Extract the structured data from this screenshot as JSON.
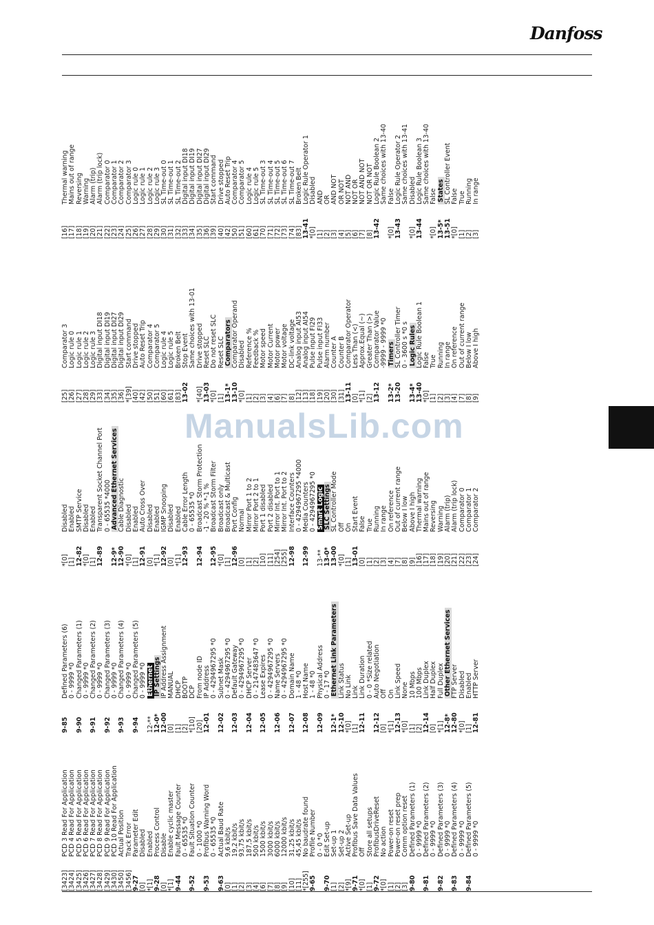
{
  "logo": {
    "text": "Danfoss"
  },
  "watermark": "ManualsLib.com",
  "columns": [
    [
      [
        "[3423]",
        "PCD 3 Read For Application"
      ],
      [
        "[3424]",
        "PCD 4 Read For Application"
      ],
      [
        "[3425]",
        "PCD 5 Read For Application"
      ],
      [
        "[3426]",
        "PCD 6 Read For Application"
      ],
      [
        "[3427]",
        "PCD 7 Read For Application"
      ],
      [
        "[3428]",
        "PCD 8 Read For Application"
      ],
      [
        "[3429]",
        "PCD 9 Read For Application"
      ],
      [
        "[3430]",
        "PCD 10 Read For Application"
      ],
      [
        "[3450]",
        "Actual Position"
      ],
      [
        "[3456]",
        "Track Error"
      ],
      [
        "9-27",
        "Parameter Edit"
      ],
      [
        "[0]",
        "Disabled"
      ],
      [
        "*[1]",
        "Enabled"
      ],
      [
        "9-28",
        "Process Control"
      ],
      [
        "[0]",
        "Disable"
      ],
      [
        "*[1]",
        "Enable cyclic master"
      ],
      [
        "9-44",
        "Fault Message Counter"
      ],
      [
        "",
        "0 - 65535 *0"
      ],
      [
        "9-52",
        "Fault Situation Counter"
      ],
      [
        "",
        "0 - 1000 *0"
      ],
      [
        "9-53",
        "Profibus Warning Word"
      ],
      [
        "",
        "0 - 65535 *0"
      ],
      [
        "9-63",
        "Actual Baud Rate"
      ],
      [
        "[0]",
        "9,6 kbit/s"
      ],
      [
        "[1]",
        "19,2 kbit/s"
      ],
      [
        "[2]",
        "93,75 kbit/s"
      ],
      [
        "[3]",
        "187,5 kbit/s"
      ],
      [
        "[4]",
        "500 kbit/s"
      ],
      [
        "[6]",
        "1500 kbit/s"
      ],
      [
        "[7]",
        "3000 kbit/s"
      ],
      [
        "[8]",
        "6000 kbit/s"
      ],
      [
        "[9]",
        "12000 kbit/s"
      ],
      [
        "[10]",
        "31,25 kbit/s"
      ],
      [
        "[11]",
        "45,45 kbit/s"
      ],
      [
        "*[255]",
        "No baudrate found"
      ],
      [
        "9-65",
        "Profile Number"
      ],
      [
        "",
        "0 - 0 *0"
      ],
      [
        "9-70",
        "Edit Set-up"
      ],
      [
        "[1]",
        "Set-up 1"
      ],
      [
        "[2]",
        "Set-up 2"
      ],
      [
        "*[9]",
        "Active Set-up"
      ],
      [
        "9-71",
        "Profibus Save Data Values"
      ],
      [
        "*[0]",
        "Off"
      ],
      [
        "[1]",
        "Store all setups"
      ],
      [
        "9-72",
        "ProfibusDriveReset"
      ],
      [
        "*[0]",
        "No action"
      ],
      [
        "[1]",
        "Power-on reset"
      ],
      [
        "[2]",
        "Power-on reset prep"
      ],
      [
        "[3]",
        "Comm option reset"
      ],
      [
        "9-80",
        "Defined Parameters (1)"
      ],
      [
        "",
        "0 - 9999 *0"
      ],
      [
        "9-81",
        "Defined Parameters (2)"
      ],
      [
        "",
        "0 - 9999 *0"
      ],
      [
        "9-82",
        "Defined Parameters (3)"
      ],
      [
        "",
        "0 - 9999 *0"
      ],
      [
        "9-83",
        "Defined Parameters (4)"
      ],
      [
        "",
        "0 - 9999 *0"
      ],
      [
        "9-84",
        "Defined Parameters (5)"
      ],
      [
        "",
        "0 - 9999 *0"
      ]
    ],
    [
      [
        "9-85",
        "Defined Parameters (6)"
      ],
      [
        "",
        "0 - 9999 *0"
      ],
      [
        "9-90",
        "Changed Parameters (1)"
      ],
      [
        "",
        "0 - 9999 *0"
      ],
      [
        "9-91",
        "Changed Parameters (2)"
      ],
      [
        "",
        "0 - 9999 *0"
      ],
      [
        "9-92",
        "Changed Parameters (3)"
      ],
      [
        "",
        "0 - 9999 *0"
      ],
      [
        "9-93",
        "Changed Parameters (4)"
      ],
      [
        "",
        "0 - 9999 *0"
      ],
      [
        "9-94",
        "Changed Parameters (5)"
      ],
      [
        "",
        "0 - 9999 *0"
      ],
      [
        "12-**",
        "Ethernet",
        "dark"
      ],
      [
        "12-0*",
        "IP Settings",
        "grey"
      ],
      [
        "12-00",
        "IP Address Assignment"
      ],
      [
        "[0]",
        "MANUAL"
      ],
      [
        "[1]",
        "DHCP"
      ],
      [
        "[2]",
        "BOOTP"
      ],
      [
        "*[10]",
        "DCP"
      ],
      [
        "[20]",
        "From node ID"
      ],
      [
        "12-01",
        "IP Address"
      ],
      [
        "",
        "0 - 4294967295 *0"
      ],
      [
        "12-02",
        "Subnet Mask"
      ],
      [
        "",
        "0 - 4294967295 *0"
      ],
      [
        "12-03",
        "Default Gateway"
      ],
      [
        "",
        "0 - 4294967295 *0"
      ],
      [
        "12-04",
        "DHCP Server"
      ],
      [
        "",
        "0 - 2147483647 *0"
      ],
      [
        "12-05",
        "Lease Expires"
      ],
      [
        "",
        "0 - 4294967295 *0"
      ],
      [
        "12-06",
        "Name Servers"
      ],
      [
        "",
        "0 - 4294967295 *0"
      ],
      [
        "12-07",
        "Domain Name"
      ],
      [
        "",
        "1 - 48 *0"
      ],
      [
        "12-08",
        "Host Name"
      ],
      [
        "",
        "1 - 48 *0"
      ],
      [
        "12-09",
        "Physical Address"
      ],
      [
        "",
        "0 - 17 *0"
      ],
      [
        "12-1*",
        "Ethernet Link Parameters",
        "grey"
      ],
      [
        "12-10",
        "Link Status"
      ],
      [
        "*[0]",
        "No Link"
      ],
      [
        "[1]",
        "Link"
      ],
      [
        "12-11",
        "Link Duration"
      ],
      [
        "",
        "0 - 0 *Size related"
      ],
      [
        "12-12",
        "Auto Negotiation"
      ],
      [
        "[0]",
        "Off"
      ],
      [
        "*[1]",
        "On"
      ],
      [
        "12-13",
        "Link Speed"
      ],
      [
        "*[0]",
        "None"
      ],
      [
        "[1]",
        "10 Mbps"
      ],
      [
        "[2]",
        "100 Mbps"
      ],
      [
        "12-14",
        "Link Duplex"
      ],
      [
        "[0]",
        "Half Duplex"
      ],
      [
        "*[1]",
        "Full Duplex"
      ],
      [
        "12-8*",
        "Other Ethernet Services",
        "grey"
      ],
      [
        "12-80",
        "FTP Server"
      ],
      [
        "*[0]",
        "Disabled"
      ],
      [
        "[1]",
        "Enabled"
      ],
      [
        "12-81",
        "HTTP Server"
      ]
    ],
    [
      [
        "*[0]",
        "Disabled"
      ],
      [
        "[1]",
        "Enabled"
      ],
      [
        "12-82",
        "SMTP Service"
      ],
      [
        "*[0]",
        "Disabled"
      ],
      [
        "[1]",
        "Enabled"
      ],
      [
        "12-89",
        "Transparent Socket Channel Port"
      ],
      [
        "",
        "0 - 65535 *4000"
      ],
      [
        "12-9*",
        "Advanced Ethernet Services",
        "grey"
      ],
      [
        "12-90",
        "Cable Diagnostic"
      ],
      [
        "*[0]",
        "Disabled"
      ],
      [
        "[1]",
        "Enabled"
      ],
      [
        "12-91",
        "Auto Cross Over"
      ],
      [
        "[0]",
        "Disabled"
      ],
      [
        "*[1]",
        "Enabled"
      ],
      [
        "12-92",
        "IGMP Snooping"
      ],
      [
        "[0]",
        "Disabled"
      ],
      [
        "*[1]",
        "Enabled"
      ],
      [
        "12-93",
        "Cable Error Length"
      ],
      [
        "",
        "0 - 65535 *0"
      ],
      [
        "12-94",
        "Broadcast Storm Protection"
      ],
      [
        "",
        "-1 - 20 % *-1 %"
      ],
      [
        "12-95",
        "Broadcast Storm Filter"
      ],
      [
        "*[0]",
        "Broadcast only"
      ],
      [
        "[1]",
        "Broadcast & Multicast"
      ],
      [
        "12-96",
        "Port Config"
      ],
      [
        "[0]",
        "Normal"
      ],
      [
        "[1]",
        "Mirror Port 1 to 2"
      ],
      [
        "[2]",
        "Mirror Port 2 to 1"
      ],
      [
        "[10]",
        "Port 1 disabled"
      ],
      [
        "[11]",
        "Port 2 disabled"
      ],
      [
        "[254]",
        "Mirror Int. Port to 1"
      ],
      [
        "[255]",
        "Mirror Int. Port to 2"
      ],
      [
        "12-98",
        "Interface Counters"
      ],
      [
        "",
        "0 - 4294967295 *4000"
      ],
      [
        "12-99",
        "Media Counters"
      ],
      [
        "",
        "0 - 4294967295 *0"
      ],
      [
        "13-**",
        "Smart Logic",
        "dark"
      ],
      [
        "13-0*",
        "SLC Settings",
        "grey"
      ],
      [
        "13-00",
        "SL Controller Mode"
      ],
      [
        "*[0]",
        "Off"
      ],
      [
        "[1]",
        "On"
      ],
      [
        "13-01",
        "Start Event"
      ],
      [
        "[0]",
        "False"
      ],
      [
        "[1]",
        "True"
      ],
      [
        "[2]",
        "Running"
      ],
      [
        "[3]",
        "In range"
      ],
      [
        "[4]",
        "On reference"
      ],
      [
        "[7]",
        "Out of current range"
      ],
      [
        "[8]",
        "Below I low"
      ],
      [
        "[9]",
        "Above I high"
      ],
      [
        "[16]",
        "Thermal warning"
      ],
      [
        "[17]",
        "Mains out of range"
      ],
      [
        "[18]",
        "Reversing"
      ],
      [
        "[19]",
        "Warning"
      ],
      [
        "[20]",
        "Alarm (trip)"
      ],
      [
        "[21]",
        "Alarm (trip lock)"
      ],
      [
        "[22]",
        "Comparator 0"
      ],
      [
        "[23]",
        "Comparator 1"
      ],
      [
        "[24]",
        "Comparator 2"
      ]
    ],
    [
      [
        "[25]",
        "Comparator 3"
      ],
      [
        "[26]",
        "Logic rule 0"
      ],
      [
        "[27]",
        "Logic rule 1"
      ],
      [
        "[28]",
        "Logic rule 2"
      ],
      [
        "[29]",
        "Logic rule 3"
      ],
      [
        "[33]",
        "Digital input DI18"
      ],
      [
        "[34]",
        "Digital input DI19"
      ],
      [
        "[35]",
        "Digital input DI27"
      ],
      [
        "[36]",
        "Digital input DI29"
      ],
      [
        "*[39]",
        "Start command"
      ],
      [
        "[40]",
        "Drive stopped"
      ],
      [
        "[42]",
        "Auto Reset Trip"
      ],
      [
        "[50]",
        "Comparator 4"
      ],
      [
        "[51]",
        "Comparator 5"
      ],
      [
        "[60]",
        "Logic rule 4"
      ],
      [
        "[61]",
        "Logic rule 5"
      ],
      [
        "[83]",
        "Broken Belt"
      ],
      [
        "13-02",
        "Stop Event"
      ],
      [
        "",
        "Same choices with 13-01"
      ],
      [
        "*[40]",
        "Drive stopped"
      ],
      [
        "13-03",
        "Reset SLC"
      ],
      [
        "*[0]",
        "Do not reset SLC"
      ],
      [
        "[1]",
        "Reset SLC"
      ],
      [
        "13-1*",
        "Comparators",
        "grey"
      ],
      [
        "13-10",
        "Comparator Operand"
      ],
      [
        "*[0]",
        "Disabled"
      ],
      [
        "[1]",
        "Reference %"
      ],
      [
        "[2]",
        "Feedback %"
      ],
      [
        "[3]",
        "Motor speed"
      ],
      [
        "[4]",
        "Motor Current"
      ],
      [
        "[6]",
        "Motor power"
      ],
      [
        "[7]",
        "Motor voltage"
      ],
      [
        "[8]",
        "DC-link voltage"
      ],
      [
        "[12]",
        "Analog input AI53"
      ],
      [
        "[13]",
        "Analog input AI54"
      ],
      [
        "[18]",
        "Pulse input FI29"
      ],
      [
        "[19]",
        "Pulse input FI33"
      ],
      [
        "[20]",
        "Alarm number"
      ],
      [
        "[30]",
        "Counter A"
      ],
      [
        "[31]",
        "Counter B"
      ],
      [
        "13-11",
        "Comparator Operator"
      ],
      [
        "[0]",
        "Less Than (<)"
      ],
      [
        "*[1]",
        "Approx.Equal (~)"
      ],
      [
        "[2]",
        "Greater Than (>)"
      ],
      [
        "13-12",
        "Comparator Value"
      ],
      [
        "",
        "-9999 - 9999 *0"
      ],
      [
        "13-2*",
        "Timers",
        "grey"
      ],
      [
        "13-20",
        "SL Controller Timer"
      ],
      [
        "",
        "0 - 3600 s *0 s"
      ],
      [
        "13-4*",
        "Logic Rules",
        "grey"
      ],
      [
        "13-40",
        "Logic Rule Boolean 1"
      ],
      [
        "*[0]",
        "False"
      ],
      [
        "[1]",
        "True"
      ],
      [
        "[2]",
        "Running"
      ],
      [
        "[3]",
        "In range"
      ],
      [
        "[4]",
        "On reference"
      ],
      [
        "[7]",
        "Out of current range"
      ],
      [
        "[8]",
        "Below I low"
      ],
      [
        "[9]",
        "Above I high"
      ]
    ],
    [
      [
        "[16]",
        "Thermal warning"
      ],
      [
        "[17]",
        "Mains out of range"
      ],
      [
        "[18]",
        "Reversing"
      ],
      [
        "[19]",
        "Warning"
      ],
      [
        "[20]",
        "Alarm (trip)"
      ],
      [
        "[21]",
        "Alarm (trip lock)"
      ],
      [
        "[22]",
        "Comparator 0"
      ],
      [
        "[23]",
        "Comparator 1"
      ],
      [
        "[24]",
        "Comparator 2"
      ],
      [
        "[25]",
        "Comparator 3"
      ],
      [
        "[26]",
        "Logic rule 0"
      ],
      [
        "[27]",
        "Logic rule 1"
      ],
      [
        "[28]",
        "Logic rule 2"
      ],
      [
        "[29]",
        "Logic rule 3"
      ],
      [
        "[30]",
        "SL Time-out 0"
      ],
      [
        "[31]",
        "SL Time-out 1"
      ],
      [
        "[32]",
        "SL Time-out 2"
      ],
      [
        "[33]",
        "Digital input DI18"
      ],
      [
        "[34]",
        "Digital input DI19"
      ],
      [
        "[35]",
        "Digital input DI27"
      ],
      [
        "[36]",
        "Digital input DI29"
      ],
      [
        "[39]",
        "Start command"
      ],
      [
        "[40]",
        "Drive stopped"
      ],
      [
        "[42]",
        "Auto Reset Trip"
      ],
      [
        "[50]",
        "Comparator 4"
      ],
      [
        "[51]",
        "Comparator 5"
      ],
      [
        "[60]",
        "Logic rule 4"
      ],
      [
        "[61]",
        "Logic rule 5"
      ],
      [
        "[70]",
        "SL Time-out 3"
      ],
      [
        "[71]",
        "SL Time-out 4"
      ],
      [
        "[72]",
        "SL Time-out 5"
      ],
      [
        "[73]",
        "SL Time-out 6"
      ],
      [
        "[74]",
        "SL Time-out 7"
      ],
      [
        "[83]",
        "Broken Belt"
      ],
      [
        "13-41",
        "Logic Rule Operator 1"
      ],
      [
        "*[0]",
        "Disabled"
      ],
      [
        "[1]",
        "AND"
      ],
      [
        "[2]",
        "OR"
      ],
      [
        "[3]",
        "AND NOT"
      ],
      [
        "[4]",
        "OR NOT"
      ],
      [
        "[5]",
        "NOT AND"
      ],
      [
        "[6]",
        "NOT OR"
      ],
      [
        "[7]",
        "NOT AND NOT"
      ],
      [
        "[8]",
        "NOT OR NOT"
      ],
      [
        "13-42",
        "Logic Rule Boolean 2"
      ],
      [
        "",
        "Same choices with 13-40"
      ],
      [
        "*[0]",
        "False"
      ],
      [
        "13-43",
        "Logic Rule Operator 2"
      ],
      [
        "",
        "Same choices with 13-41"
      ],
      [
        "*[0]",
        "Disabled"
      ],
      [
        "13-44",
        "Logic Rule Boolean 3"
      ],
      [
        "",
        "Same choices with 13-40"
      ],
      [
        "*[0]",
        "False"
      ],
      [
        "13-5*",
        "States",
        "grey"
      ],
      [
        "13-51",
        "SL Controller Event"
      ],
      [
        "*[0]",
        "False"
      ],
      [
        "[1]",
        "True"
      ],
      [
        "[2]",
        "Running"
      ],
      [
        "[3]",
        "In range"
      ]
    ]
  ]
}
